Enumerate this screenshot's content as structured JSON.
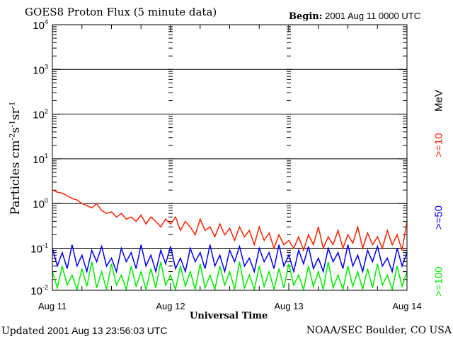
{
  "header": {
    "title": "GOES8 Proton Flux (5 minute data)",
    "begin_label": "Begin:",
    "begin_value": "2001 Aug 11 0000 UTC"
  },
  "footer": {
    "updated_label": "Updated",
    "updated_value": "2001 Aug 13 23:56:03 UTC",
    "credit": "NOAA/SEC Boulder, CO USA"
  },
  "chart_data": {
    "type": "line",
    "title": "GOES8 Proton Flux (5 minute data)",
    "xlabel": "Universal Time",
    "ylabel": "Particles cm-2s-1sr-1",
    "yscale": "log",
    "ylim": [
      0.01,
      10000
    ],
    "xlim_hours": [
      0,
      72
    ],
    "x_ticks": [
      "Aug 11",
      "Aug 12",
      "Aug 13",
      "Aug 14"
    ],
    "y_ticks": [
      {
        "base": "10",
        "exp": "4",
        "value": 10000
      },
      {
        "base": "10",
        "exp": "3",
        "value": 1000
      },
      {
        "base": "10",
        "exp": "2",
        "value": 100
      },
      {
        "base": "10",
        "exp": "1",
        "value": 10
      },
      {
        "base": "10",
        "exp": "0",
        "value": 1
      },
      {
        "base": "10",
        "exp": "-1",
        "value": 0.1
      },
      {
        "base": "10",
        "exp": "-2",
        "value": 0.01
      }
    ],
    "grid": true,
    "legend_unit": "MeV",
    "x_hours_step": 1,
    "series": [
      {
        "name": ">=10",
        "color": "#ff2000",
        "values": [
          2.0,
          1.8,
          1.7,
          1.5,
          1.3,
          1.2,
          1.0,
          0.9,
          0.8,
          1.0,
          0.7,
          0.6,
          0.65,
          0.5,
          0.6,
          0.45,
          0.5,
          0.4,
          0.55,
          0.35,
          0.5,
          0.4,
          0.3,
          0.45,
          0.35,
          0.5,
          0.25,
          0.4,
          0.3,
          0.2,
          0.45,
          0.25,
          0.3,
          0.18,
          0.35,
          0.2,
          0.28,
          0.15,
          0.3,
          0.18,
          0.25,
          0.12,
          0.3,
          0.15,
          0.22,
          0.1,
          0.2,
          0.12,
          0.15,
          0.1,
          0.18,
          0.09,
          0.2,
          0.12,
          0.3,
          0.1,
          0.18,
          0.12,
          0.25,
          0.1,
          0.2,
          0.13,
          0.3,
          0.1,
          0.22,
          0.12,
          0.18,
          0.1,
          0.25,
          0.12,
          0.2,
          0.09,
          0.4
        ]
      },
      {
        "name": ">=50",
        "color": "#0000ff",
        "values": [
          0.1,
          0.04,
          0.08,
          0.035,
          0.12,
          0.04,
          0.07,
          0.03,
          0.09,
          0.05,
          0.11,
          0.04,
          0.06,
          0.03,
          0.1,
          0.05,
          0.08,
          0.035,
          0.12,
          0.04,
          0.07,
          0.03,
          0.09,
          0.045,
          0.11,
          0.035,
          0.06,
          0.03,
          0.1,
          0.05,
          0.08,
          0.035,
          0.12,
          0.04,
          0.07,
          0.03,
          0.09,
          0.05,
          0.11,
          0.04,
          0.06,
          0.03,
          0.1,
          0.05,
          0.08,
          0.035,
          0.12,
          0.04,
          0.07,
          0.03,
          0.09,
          0.045,
          0.11,
          0.035,
          0.06,
          0.03,
          0.1,
          0.05,
          0.08,
          0.035,
          0.12,
          0.04,
          0.07,
          0.03,
          0.09,
          0.05,
          0.11,
          0.04,
          0.06,
          0.03,
          0.1,
          0.04,
          0.08
        ]
      },
      {
        "name": ">=100",
        "color": "#00ee00",
        "values": [
          0.03,
          0.013,
          0.04,
          0.015,
          0.025,
          0.012,
          0.035,
          0.014,
          0.05,
          0.013,
          0.03,
          0.012,
          0.045,
          0.015,
          0.025,
          0.012,
          0.04,
          0.014,
          0.03,
          0.012,
          0.035,
          0.013,
          0.05,
          0.015,
          0.025,
          0.012,
          0.04,
          0.014,
          0.03,
          0.012,
          0.045,
          0.013,
          0.025,
          0.012,
          0.04,
          0.015,
          0.03,
          0.012,
          0.05,
          0.013,
          0.025,
          0.012,
          0.04,
          0.014,
          0.03,
          0.012,
          0.035,
          0.013,
          0.045,
          0.015,
          0.025,
          0.012,
          0.04,
          0.014,
          0.03,
          0.012,
          0.05,
          0.013,
          0.025,
          0.012,
          0.04,
          0.014,
          0.03,
          0.012,
          0.035,
          0.013,
          0.045,
          0.015,
          0.025,
          0.012,
          0.04,
          0.014,
          0.03
        ]
      }
    ]
  }
}
